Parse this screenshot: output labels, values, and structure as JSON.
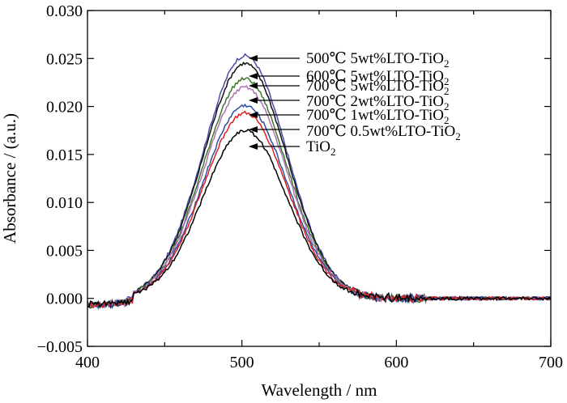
{
  "chart_data": {
    "type": "line",
    "xlabel": "Wavelength / nm",
    "ylabel": "Absorbance / (a.u.)",
    "xlim": [
      400,
      700
    ],
    "ylim": [
      -0.005,
      0.03
    ],
    "x_ticks": [
      400,
      500,
      600,
      700
    ],
    "x_tick_labels": [
      "400",
      "500",
      "600",
      "700"
    ],
    "y_ticks": [
      -0.005,
      0.0,
      0.005,
      0.01,
      0.015,
      0.02,
      0.025,
      0.03
    ],
    "y_tick_labels": [
      "−0.005",
      "0.000",
      "0.005",
      "0.010",
      "0.015",
      "0.020",
      "0.025",
      "0.030"
    ],
    "grid": false,
    "legend_placement": "annotations with arrows pointing to peaks",
    "series": [
      {
        "label_main": "500℃ 5wt%LTO-TiO",
        "label_sub": "2",
        "color": "#4a4aa8",
        "peak_x": 502,
        "peak_y": 0.0253,
        "sigma": 27
      },
      {
        "label_main": "600℃ 5wt%LTO-TiO",
        "label_sub": "2",
        "color": "#111111",
        "peak_x": 502,
        "peak_y": 0.0245,
        "sigma": 27
      },
      {
        "label_main": "700℃ 5wt%LTO-TiO",
        "label_sub": "2",
        "color": "#3b7a2a",
        "peak_x": 502,
        "peak_y": 0.0229,
        "sigma": 27
      },
      {
        "label_main": "700℃ 2wt%LTO-TiO",
        "label_sub": "2",
        "color": "#b070b8",
        "peak_x": 502,
        "peak_y": 0.022,
        "sigma": 27
      },
      {
        "label_main": "700℃ 1wt%LTO-TiO",
        "label_sub": "2",
        "color": "#2a4fa0",
        "peak_x": 502,
        "peak_y": 0.0201,
        "sigma": 27
      },
      {
        "label_main": "700℃ 0.5wt%LTO-TiO",
        "label_sub": "2",
        "color": "#e02020",
        "peak_x": 502,
        "peak_y": 0.0193,
        "sigma": 27
      },
      {
        "label_main": "TiO",
        "label_sub": "2",
        "color": "#000000",
        "peak_x": 502,
        "peak_y": 0.0175,
        "sigma": 27
      }
    ]
  }
}
